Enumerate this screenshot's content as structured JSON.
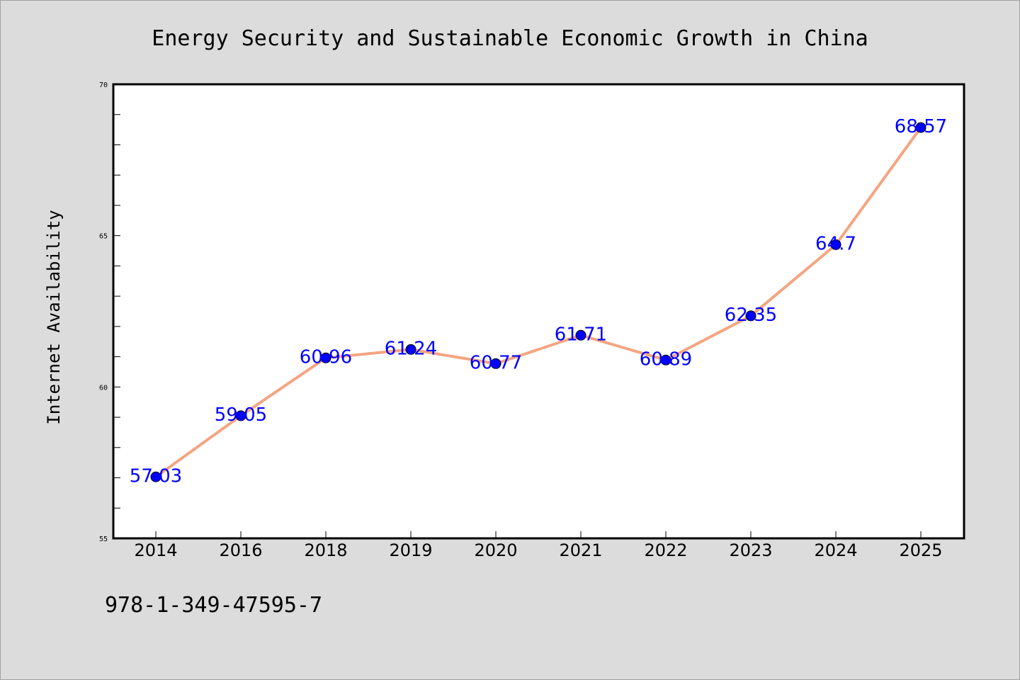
{
  "chart_data": {
    "type": "line",
    "title": "Energy Security and Sustainable Economic Growth in China",
    "xlabel": "",
    "ylabel": "Internet Availability",
    "categories": [
      "2014",
      "2016",
      "2018",
      "2019",
      "2020",
      "2021",
      "2022",
      "2023",
      "2024",
      "2025"
    ],
    "series": [
      {
        "values": [
          57.03,
          59.05,
          60.96,
          61.24,
          60.77,
          61.71,
          60.89,
          62.35,
          64.7,
          68.57
        ],
        "data_labels": [
          "57.03",
          "59.05",
          "60.96",
          "61.24",
          "60.77",
          "61.71",
          "60.89",
          "62.35",
          "64.7",
          "68.57"
        ]
      }
    ],
    "ylim": [
      55,
      70
    ],
    "yticks": [
      "55",
      "60",
      "65",
      "70"
    ],
    "grid": false,
    "legend": "none",
    "colors": {
      "line": "#f4a582",
      "marker": "#0000ff",
      "data_label": "#0000ff",
      "background": "#dcdcdc",
      "plot_background": "#ffffff"
    }
  },
  "footer": {
    "isbn": "978-1-349-47595-7"
  }
}
